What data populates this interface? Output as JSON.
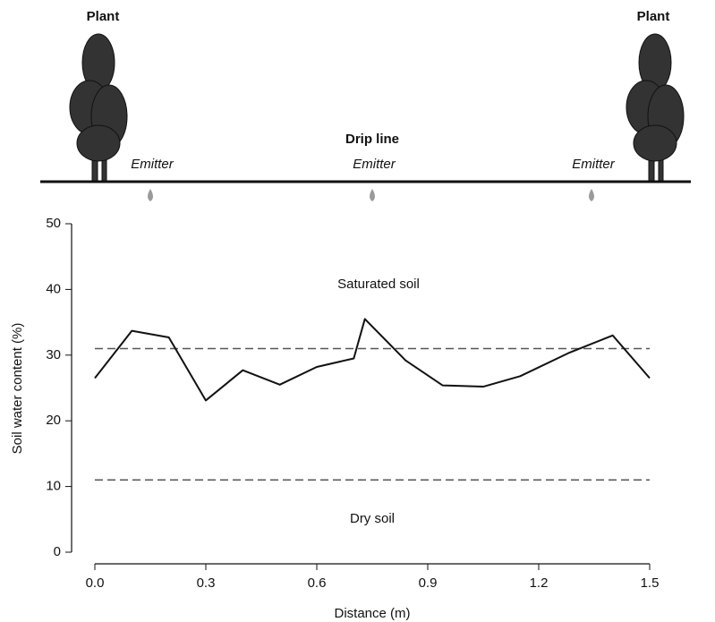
{
  "chart_data": {
    "type": "line",
    "x": [
      0,
      0.1,
      0.2,
      0.3,
      0.4,
      0.5,
      0.6,
      0.7,
      0.73,
      0.84,
      0.94,
      1.05,
      1.15,
      1.28,
      1.4,
      1.5
    ],
    "series": [
      {
        "name": "Soil water content",
        "color": "#111111",
        "values": [
          26.5,
          33.7,
          32.7,
          23.1,
          27.7,
          25.5,
          28.2,
          29.5,
          35.5,
          29.2,
          25.4,
          25.2,
          26.8,
          30.3,
          33.0,
          26.5
        ]
      }
    ],
    "xlim": [
      0,
      1.5
    ],
    "ylim": [
      0,
      50
    ],
    "xticks": [
      {
        "value": 0,
        "label": "0.0"
      },
      0.3,
      0.6,
      0.9,
      1.2,
      1.5
    ],
    "yticks": [
      0,
      10,
      20,
      30,
      40,
      50
    ],
    "xlabel": "Distance (m)",
    "ylabel": "Soil water content (%)",
    "reference_lines": [
      31,
      11
    ],
    "annotations": [
      "Saturated soil",
      "Dry soil"
    ],
    "diagram": {
      "plant_labels": [
        "Plant",
        "Plant"
      ],
      "drip_line_label": "Drip line",
      "emitter_labels": [
        "Emitter",
        "Emitter",
        "Emitter"
      ]
    }
  }
}
